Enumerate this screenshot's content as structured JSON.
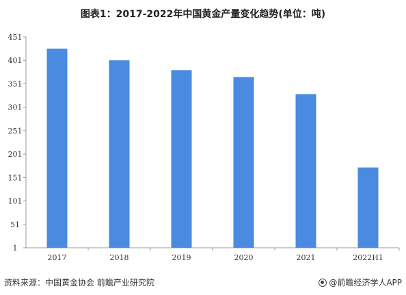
{
  "title": "图表1：2017-2022年中国黄金产量变化趋势(单位：吨)",
  "chart_data": {
    "type": "bar",
    "categories": [
      "2017",
      "2018",
      "2019",
      "2020",
      "2021",
      "2022H1"
    ],
    "values": [
      426.14,
      401.12,
      380.23,
      365.34,
      328.98,
      172.45
    ],
    "yticks": [
      "1",
      "51",
      "101",
      "151",
      "201",
      "251",
      "301",
      "351",
      "401",
      "451"
    ],
    "ylim": [
      1,
      451
    ],
    "bar_color": "#4a8ae0",
    "grid": false,
    "legend": "none"
  },
  "footer": {
    "source": "资料来源：中国黄金协会 前瞻产业研究院",
    "brand": "@前瞻经济学人APP",
    "brand_icon": "qianzhan-logo-icon"
  }
}
